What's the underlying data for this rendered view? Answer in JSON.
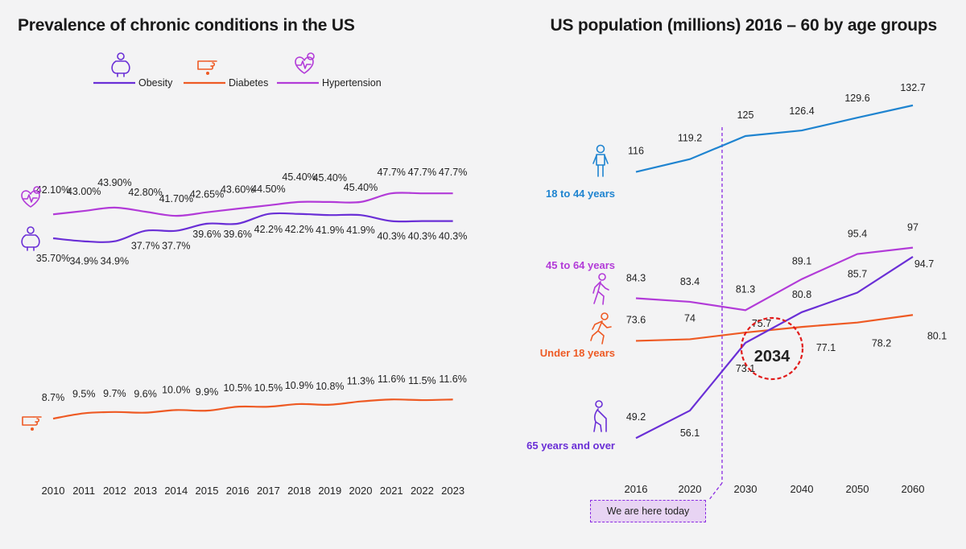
{
  "colors": {
    "obesity": "#6a2fd6",
    "diabetes": "#ee5a24",
    "hypertension": "#b23bd8",
    "age_18_44": "#1f84d0",
    "age_45_64": "#b23bd8",
    "age_under_18": "#ee5a24",
    "age_65_over": "#6a2fd6",
    "highlight": "#e11b1b",
    "today": "#8a2be2"
  },
  "today_label": "We are here today",
  "chart_data": [
    {
      "type": "line",
      "title": "Prevalence of chronic conditions in the US",
      "categories": [
        "2010",
        "2011",
        "2012",
        "2013",
        "2014",
        "2015",
        "2016",
        "2017",
        "2018",
        "2019",
        "2020",
        "2021",
        "2022",
        "2023"
      ],
      "legend": [
        "Obesity",
        "Diabetes",
        "Hypertension"
      ],
      "legend_position": "top",
      "grid": false,
      "series": [
        {
          "name": "Hypertension",
          "color": "hypertension",
          "icon": "heart-monitor-icon",
          "values": [
            42.1,
            43.0,
            43.9,
            42.8,
            41.7,
            42.65,
            43.6,
            44.5,
            45.4,
            45.4,
            45.4,
            47.7,
            47.7,
            47.7
          ],
          "labels": [
            "42.10%",
            "43.00%",
            "43.90%",
            "42.80%",
            "41.70%",
            "42.65%",
            "43.60%",
            "44.50%",
            "45.40%",
            "45.40%",
            "45.40%",
            "47.7%",
            "47.7%",
            "47.7%"
          ]
        },
        {
          "name": "Obesity",
          "color": "obesity",
          "icon": "obesity-icon",
          "values": [
            35.7,
            34.9,
            34.9,
            37.7,
            37.7,
            39.6,
            39.6,
            42.2,
            42.2,
            41.9,
            41.9,
            40.3,
            40.3,
            40.3
          ],
          "labels": [
            "35.70%",
            "34.9%",
            "34.9%",
            "37.7%",
            "37.7%",
            "39.6%",
            "39.6%",
            "42.2%",
            "42.2%",
            "41.9%",
            "41.9%",
            "40.3%",
            "40.3%",
            "40.3%"
          ]
        },
        {
          "name": "Diabetes",
          "color": "diabetes",
          "icon": "finger-prick-icon",
          "values": [
            8.7,
            9.5,
            9.7,
            9.6,
            10.0,
            9.9,
            10.5,
            10.5,
            10.9,
            10.8,
            11.3,
            11.6,
            11.5,
            11.6
          ],
          "labels": [
            "8.7%",
            "9.5%",
            "9.7%",
            "9.6%",
            "10.0%",
            "9.9%",
            "10.5%",
            "10.5%",
            "10.9%",
            "10.8%",
            "11.3%",
            "11.6%",
            "11.5%",
            "11.6%"
          ]
        }
      ]
    },
    {
      "type": "line",
      "title": "US population (millions) 2016 – 60 by age groups",
      "categories": [
        "2016",
        "2020",
        "2030",
        "2040",
        "2050",
        "2060"
      ],
      "today_marker_between": [
        "2020",
        "2030"
      ],
      "highlight": {
        "label": "2034",
        "near": "2030-2040"
      },
      "grid": false,
      "series": [
        {
          "name": "18 to 44 years",
          "color": "age_18_44",
          "icon": "person-standing-icon",
          "values": [
            116,
            119.2,
            125,
            126.4,
            129.6,
            132.7
          ],
          "labels": [
            "116",
            "119.2",
            "125",
            "126.4",
            "129.6",
            "132.7"
          ]
        },
        {
          "name": "45 to 64 years",
          "color": "age_45_64",
          "icon": "person-walking-icon",
          "values": [
            84.3,
            83.4,
            81.3,
            89.1,
            95.4,
            97
          ],
          "labels": [
            "84.3",
            "83.4",
            "81.3",
            "89.1",
            "95.4",
            "97"
          ]
        },
        {
          "name": "Under 18 years",
          "color": "age_under_18",
          "icon": "person-running-icon",
          "values": [
            73.6,
            74,
            75.7,
            77.1,
            78.2,
            80.1
          ],
          "labels": [
            "73.6",
            "74",
            "75.7",
            "77.1",
            "78.2",
            "80.1"
          ]
        },
        {
          "name": "65 years and over",
          "color": "age_65_over",
          "icon": "elderly-cane-icon",
          "values": [
            49.2,
            56.1,
            73.1,
            80.8,
            85.7,
            94.7
          ],
          "labels": [
            "49.2",
            "56.1",
            "73.1",
            "80.8",
            "85.7",
            "94.7"
          ]
        }
      ]
    }
  ]
}
